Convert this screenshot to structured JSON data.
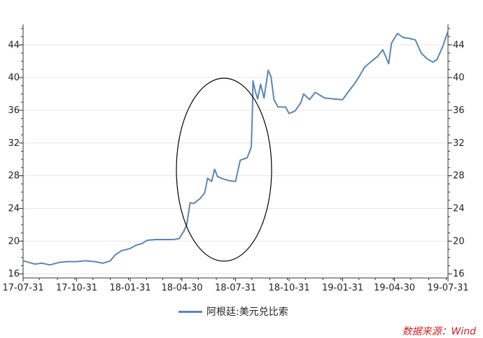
{
  "chart_data": {
    "type": "line",
    "series": [
      {
        "name": "阿根廷:美元兑比索",
        "color": "#5b86b5",
        "points": [
          [
            "2017-07-31",
            17.6
          ],
          [
            "2017-08-10",
            17.4
          ],
          [
            "2017-08-20",
            17.2
          ],
          [
            "2017-09-01",
            17.3
          ],
          [
            "2017-09-15",
            17.1
          ],
          [
            "2017-10-01",
            17.4
          ],
          [
            "2017-10-15",
            17.5
          ],
          [
            "2017-10-31",
            17.5
          ],
          [
            "2017-11-15",
            17.6
          ],
          [
            "2017-12-01",
            17.5
          ],
          [
            "2017-12-15",
            17.3
          ],
          [
            "2017-12-28",
            17.6
          ],
          [
            "2018-01-05",
            18.3
          ],
          [
            "2018-01-15",
            18.8
          ],
          [
            "2018-01-31",
            19.1
          ],
          [
            "2018-02-10",
            19.5
          ],
          [
            "2018-02-20",
            19.7
          ],
          [
            "2018-03-01",
            20.1
          ],
          [
            "2018-03-15",
            20.2
          ],
          [
            "2018-04-01",
            20.2
          ],
          [
            "2018-04-15",
            20.2
          ],
          [
            "2018-04-25",
            20.3
          ],
          [
            "2018-05-03",
            21.2
          ],
          [
            "2018-05-08",
            22.0
          ],
          [
            "2018-05-14",
            24.7
          ],
          [
            "2018-05-20",
            24.6
          ],
          [
            "2018-05-31",
            25.2
          ],
          [
            "2018-06-08",
            25.9
          ],
          [
            "2018-06-13",
            27.7
          ],
          [
            "2018-06-20",
            27.3
          ],
          [
            "2018-06-25",
            28.8
          ],
          [
            "2018-06-30",
            27.9
          ],
          [
            "2018-07-10",
            27.6
          ],
          [
            "2018-07-20",
            27.4
          ],
          [
            "2018-07-31",
            27.3
          ],
          [
            "2018-08-08",
            29.9
          ],
          [
            "2018-08-20",
            30.2
          ],
          [
            "2018-08-27",
            31.5
          ],
          [
            "2018-08-29",
            36.0
          ],
          [
            "2018-08-30",
            39.6
          ],
          [
            "2018-09-03",
            38.3
          ],
          [
            "2018-09-07",
            37.4
          ],
          [
            "2018-09-12",
            39.2
          ],
          [
            "2018-09-18",
            37.5
          ],
          [
            "2018-09-25",
            40.9
          ],
          [
            "2018-09-30",
            40.1
          ],
          [
            "2018-10-05",
            37.3
          ],
          [
            "2018-10-12",
            36.4
          ],
          [
            "2018-10-25",
            36.4
          ],
          [
            "2018-10-31",
            35.6
          ],
          [
            "2018-11-10",
            35.9
          ],
          [
            "2018-11-20",
            36.9
          ],
          [
            "2018-11-25",
            38.0
          ],
          [
            "2018-12-05",
            37.3
          ],
          [
            "2018-12-15",
            38.2
          ],
          [
            "2018-12-31",
            37.5
          ],
          [
            "2019-01-15",
            37.4
          ],
          [
            "2019-01-31",
            37.3
          ],
          [
            "2019-02-10",
            38.3
          ],
          [
            "2019-02-20",
            39.2
          ],
          [
            "2019-03-01",
            40.2
          ],
          [
            "2019-03-10",
            41.3
          ],
          [
            "2019-03-20",
            41.9
          ],
          [
            "2019-04-01",
            42.6
          ],
          [
            "2019-04-10",
            43.4
          ],
          [
            "2019-04-20",
            41.7
          ],
          [
            "2019-04-25",
            44.2
          ],
          [
            "2019-05-05",
            45.4
          ],
          [
            "2019-05-15",
            44.9
          ],
          [
            "2019-05-25",
            44.8
          ],
          [
            "2019-06-05",
            44.6
          ],
          [
            "2019-06-15",
            43.0
          ],
          [
            "2019-06-25",
            42.3
          ],
          [
            "2019-07-05",
            41.9
          ],
          [
            "2019-07-12",
            42.2
          ],
          [
            "2019-07-22",
            43.8
          ],
          [
            "2019-07-31",
            45.7
          ]
        ]
      }
    ],
    "ylim": [
      15.5,
      46.5
    ],
    "yticks": [
      "16",
      "20",
      "24",
      "28",
      "32",
      "36",
      "40",
      "44"
    ],
    "xticks": [
      "17-07-31",
      "17-10-31",
      "18-01-31",
      "18-04-30",
      "18-07-31",
      "18-10-31",
      "19-01-31",
      "19-04-30",
      "19-07-31"
    ],
    "xtick_dates": [
      "2017-07-31",
      "2017-10-31",
      "2018-01-31",
      "2018-04-30",
      "2018-07-31",
      "2018-10-31",
      "2019-01-31",
      "2019-04-30",
      "2019-07-31"
    ],
    "annotation": "ellipse",
    "grid": "horizontal",
    "legend_position": "bottom"
  },
  "legend_label": "阿根廷:美元兑比索",
  "source_label": "数据来源：Wind"
}
